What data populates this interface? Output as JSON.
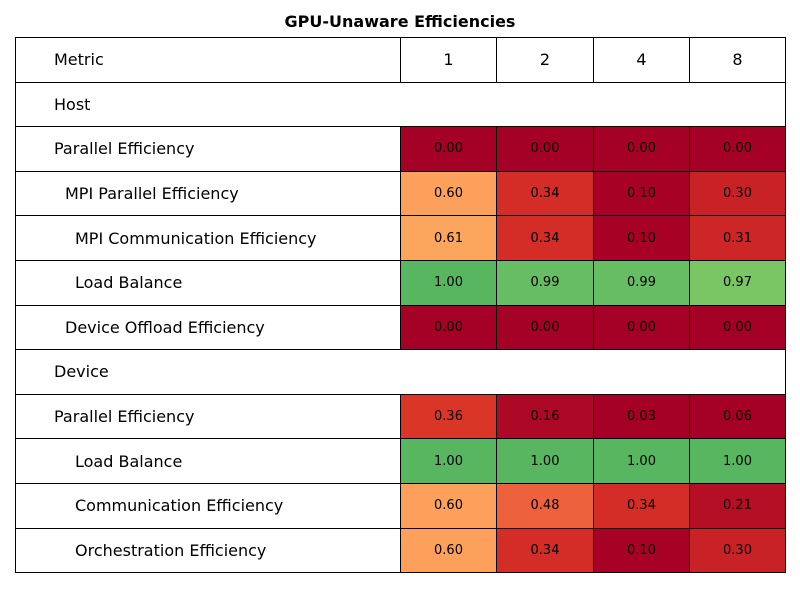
{
  "chart_data": {
    "type": "table",
    "title": "GPU-Unaware Efficiencies",
    "header": [
      "Metric",
      "1",
      "2",
      "4",
      "8"
    ],
    "rows": [
      {
        "label": "Host",
        "indent": 0,
        "section": true
      },
      {
        "label": "Parallel Efficiency",
        "indent": 0,
        "values": [
          "0.00",
          "0.00",
          "0.00",
          "0.00"
        ],
        "colors": [
          "#a50026",
          "#a50026",
          "#a50026",
          "#a50026"
        ]
      },
      {
        "label": "MPI Parallel Efficiency",
        "indent": 1,
        "values": [
          "0.60",
          "0.34",
          "0.10",
          "0.30"
        ],
        "colors": [
          "#fca05c",
          "#d42d27",
          "#a70226",
          "#c82227"
        ]
      },
      {
        "label": "MPI Communication Efficiency",
        "indent": 2,
        "values": [
          "0.61",
          "0.34",
          "0.10",
          "0.31"
        ],
        "colors": [
          "#fca55d",
          "#d42d27",
          "#a70226",
          "#cc2627"
        ]
      },
      {
        "label": "Load Balance",
        "indent": 2,
        "values": [
          "1.00",
          "0.99",
          "0.99",
          "0.97"
        ],
        "colors": [
          "#57b65f",
          "#66bd63",
          "#66bd63",
          "#7ac665"
        ]
      },
      {
        "label": "Device Offload Efficiency",
        "indent": 1,
        "values": [
          "0.00",
          "0.00",
          "0.00",
          "0.00"
        ],
        "colors": [
          "#a50026",
          "#a50026",
          "#a50026",
          "#a50026"
        ]
      },
      {
        "label": "Device",
        "indent": 0,
        "section": true
      },
      {
        "label": "Parallel Efficiency",
        "indent": 0,
        "values": [
          "0.36",
          "0.16",
          "0.03",
          "0.06"
        ],
        "colors": [
          "#da3627",
          "#ad0826",
          "#a50026",
          "#a50026"
        ]
      },
      {
        "label": "Load Balance",
        "indent": 2,
        "values": [
          "1.00",
          "1.00",
          "1.00",
          "1.00"
        ],
        "colors": [
          "#57b65f",
          "#57b65f",
          "#57b65f",
          "#57b65f"
        ]
      },
      {
        "label": "Communication Efficiency",
        "indent": 2,
        "values": [
          "0.60",
          "0.48",
          "0.34",
          "0.21"
        ],
        "colors": [
          "#fca05c",
          "#ee613d",
          "#d42d27",
          "#b50f26"
        ]
      },
      {
        "label": "Orchestration Efficiency",
        "indent": 2,
        "values": [
          "0.60",
          "0.34",
          "0.10",
          "0.30"
        ],
        "colors": [
          "#fca05c",
          "#d42d27",
          "#a70226",
          "#c82227"
        ]
      }
    ],
    "colormap": "RdYlGn"
  }
}
